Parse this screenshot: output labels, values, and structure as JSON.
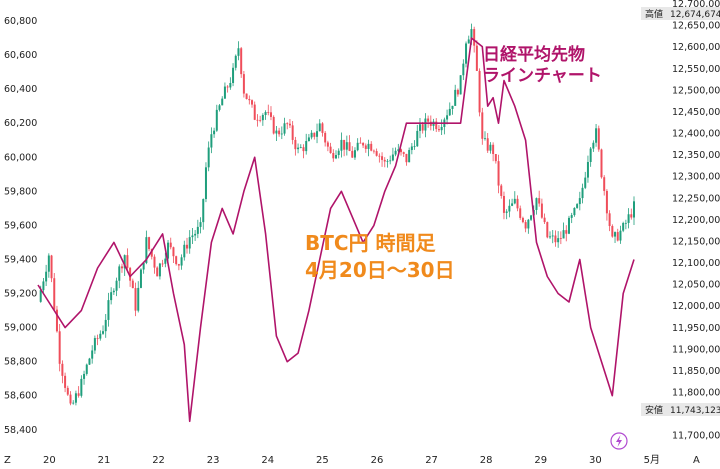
{
  "chart_data": {
    "type": "line",
    "annotations": {
      "btc_title_1": "BTC円 時間足",
      "btc_title_2": "4月20日〜30日",
      "nikkei_title_1": "日経平均先物",
      "nikkei_title_2": "ラインチャート"
    },
    "x_ticks": [
      "20",
      "21",
      "22",
      "23",
      "24",
      "25",
      "26",
      "27",
      "28",
      "29",
      "30",
      "5月"
    ],
    "left_axis": {
      "ticks": [
        "60,800",
        "60,600",
        "60,400",
        "60,200",
        "60,000",
        "59,800",
        "59,600",
        "59,400",
        "59,200",
        "59,000",
        "58,800",
        "58,600",
        "58,400"
      ],
      "ylim": [
        58340,
        60900
      ]
    },
    "right_axis": {
      "ticks": [
        "12,700,000",
        "12,650,000",
        "12,600,000",
        "12,550,000",
        "12,500,000",
        "12,450,000",
        "12,400,000",
        "12,350,000",
        "12,300,000",
        "12,250,000",
        "12,200,000",
        "12,150,000",
        "12,100,000",
        "12,050,000",
        "12,000,000",
        "11,950,000",
        "11,900,000",
        "11,850,000",
        "11,800,000",
        "11,750,000",
        "11,700,000"
      ],
      "ylim": [
        11690000,
        12700000
      ],
      "high_label": "高値",
      "high_value": "12,674,674",
      "low_label": "安値",
      "low_value": "11,743,123"
    },
    "bottom_left_icon_label": "Z",
    "bottom_right_icon_label": "A",
    "series": [
      {
        "kind": "candlestick",
        "axis": "right",
        "up_color": "#1f9e7c",
        "down_color": "#ef4d5a",
        "path": [
          [
            0,
            12010000
          ],
          [
            2,
            12120000
          ],
          [
            4,
            11880000
          ],
          [
            6,
            11760000
          ],
          [
            8,
            11820000
          ],
          [
            10,
            11900000
          ],
          [
            12,
            11950000
          ],
          [
            14,
            12050000
          ],
          [
            16,
            12120000
          ],
          [
            18,
            12000000
          ],
          [
            20,
            12150000
          ],
          [
            22,
            12080000
          ],
          [
            24,
            12140000
          ],
          [
            26,
            12100000
          ],
          [
            28,
            12160000
          ],
          [
            30,
            12180000
          ],
          [
            31,
            12320000
          ],
          [
            32,
            12400000
          ],
          [
            34,
            12480000
          ],
          [
            36,
            12540000
          ],
          [
            37,
            12600000
          ],
          [
            38,
            12500000
          ],
          [
            40,
            12440000
          ],
          [
            42,
            12450000
          ],
          [
            44,
            12400000
          ],
          [
            46,
            12420000
          ],
          [
            48,
            12360000
          ],
          [
            50,
            12380000
          ],
          [
            52,
            12420000
          ],
          [
            54,
            12350000
          ],
          [
            56,
            12380000
          ],
          [
            58,
            12350000
          ],
          [
            60,
            12380000
          ],
          [
            62,
            12370000
          ],
          [
            64,
            12330000
          ],
          [
            66,
            12360000
          ],
          [
            68,
            12340000
          ],
          [
            70,
            12400000
          ],
          [
            72,
            12430000
          ],
          [
            74,
            12420000
          ],
          [
            76,
            12460000
          ],
          [
            78,
            12520000
          ],
          [
            79,
            12620000
          ],
          [
            80,
            12640000
          ],
          [
            81,
            12540000
          ],
          [
            82,
            12380000
          ],
          [
            84,
            12360000
          ],
          [
            86,
            12210000
          ],
          [
            88,
            12240000
          ],
          [
            90,
            12190000
          ],
          [
            92,
            12250000
          ],
          [
            94,
            12160000
          ],
          [
            96,
            12150000
          ],
          [
            98,
            12190000
          ],
          [
            100,
            12240000
          ],
          [
            102,
            12380000
          ],
          [
            103,
            12400000
          ],
          [
            104,
            12310000
          ],
          [
            106,
            12150000
          ],
          [
            108,
            12180000
          ],
          [
            110,
            12230000
          ]
        ]
      },
      {
        "kind": "line",
        "axis": "left",
        "color": "#b0146a",
        "path": [
          [
            0,
            59250
          ],
          [
            2,
            59150
          ],
          [
            5,
            59000
          ],
          [
            8,
            59100
          ],
          [
            11,
            59350
          ],
          [
            14,
            59500
          ],
          [
            17,
            59300
          ],
          [
            20,
            59400
          ],
          [
            23,
            59550
          ],
          [
            25,
            59200
          ],
          [
            27,
            58900
          ],
          [
            28,
            58450
          ],
          [
            30,
            59000
          ],
          [
            32,
            59500
          ],
          [
            34,
            59700
          ],
          [
            36,
            59550
          ],
          [
            38,
            59800
          ],
          [
            40,
            60000
          ],
          [
            42,
            59550
          ],
          [
            44,
            58950
          ],
          [
            46,
            58800
          ],
          [
            48,
            58850
          ],
          [
            50,
            59100
          ],
          [
            52,
            59400
          ],
          [
            54,
            59700
          ],
          [
            56,
            59800
          ],
          [
            58,
            59650
          ],
          [
            60,
            59500
          ],
          [
            62,
            59600
          ],
          [
            64,
            59800
          ],
          [
            66,
            59950
          ],
          [
            68,
            60200
          ],
          [
            70,
            60200
          ],
          [
            72,
            60200
          ],
          [
            74,
            60200
          ],
          [
            76,
            60200
          ],
          [
            78,
            60200
          ],
          [
            80,
            60700
          ],
          [
            82,
            60650
          ],
          [
            83,
            60300
          ],
          [
            84,
            60350
          ],
          [
            85,
            60200
          ],
          [
            86,
            60450
          ],
          [
            88,
            60300
          ],
          [
            90,
            60100
          ],
          [
            92,
            59500
          ],
          [
            94,
            59300
          ],
          [
            96,
            59200
          ],
          [
            98,
            59150
          ],
          [
            100,
            59400
          ],
          [
            101,
            59200
          ],
          [
            102,
            59000
          ],
          [
            104,
            58800
          ],
          [
            106,
            58600
          ],
          [
            108,
            59200
          ],
          [
            110,
            59400
          ]
        ]
      }
    ]
  }
}
